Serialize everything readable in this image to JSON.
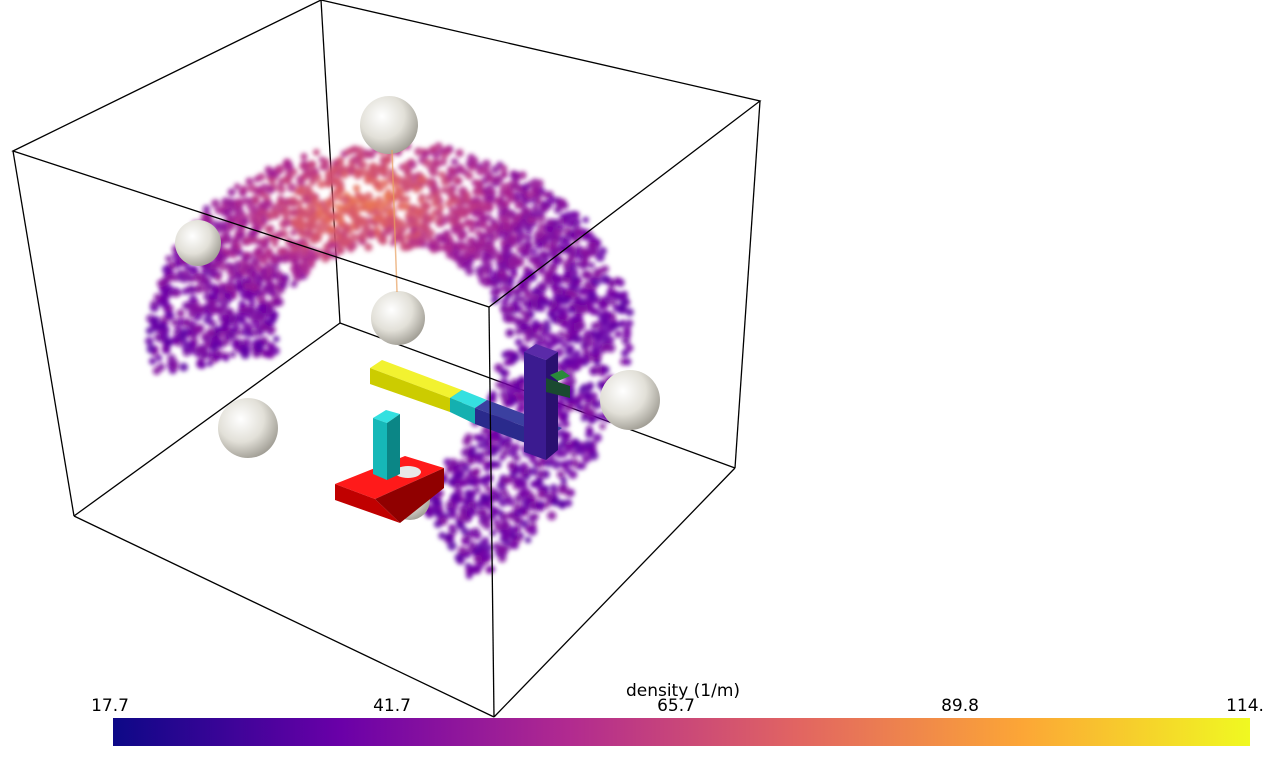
{
  "colorbar": {
    "title": "density (1/m)",
    "ticks": [
      "17.7",
      "41.7",
      "65.7",
      "89.8",
      "114."
    ],
    "colors": [
      "#0d0887",
      "#6a00a8",
      "#b12a90",
      "#e16462",
      "#fca636",
      "#f0f921"
    ]
  },
  "scene": {
    "background": "#ffffff",
    "point_cloud": "density-colored particle arc",
    "objects": [
      "bounding-box",
      "sphere-markers",
      "robot-arm",
      "red-base"
    ]
  }
}
